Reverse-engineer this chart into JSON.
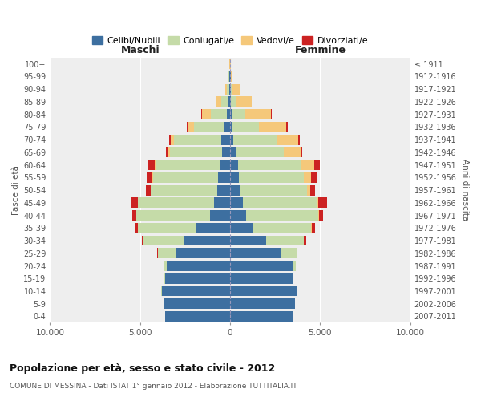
{
  "age_groups": [
    "0-4",
    "5-9",
    "10-14",
    "15-19",
    "20-24",
    "25-29",
    "30-34",
    "35-39",
    "40-44",
    "45-49",
    "50-54",
    "55-59",
    "60-64",
    "65-69",
    "70-74",
    "75-79",
    "80-84",
    "85-89",
    "90-94",
    "95-99",
    "100+"
  ],
  "birth_years": [
    "2007-2011",
    "2002-2006",
    "1997-2001",
    "1992-1996",
    "1987-1991",
    "1982-1986",
    "1977-1981",
    "1972-1976",
    "1967-1971",
    "1962-1966",
    "1957-1961",
    "1952-1956",
    "1947-1951",
    "1942-1946",
    "1937-1941",
    "1932-1936",
    "1927-1931",
    "1922-1926",
    "1917-1921",
    "1912-1916",
    "≤ 1911"
  ],
  "male": {
    "celibi": [
      3600,
      3700,
      3800,
      3600,
      3500,
      3000,
      2600,
      1900,
      1100,
      900,
      700,
      680,
      600,
      450,
      500,
      320,
      180,
      80,
      60,
      30,
      10
    ],
    "coniugati": [
      2,
      5,
      10,
      50,
      200,
      1000,
      2200,
      3200,
      4100,
      4200,
      3700,
      3600,
      3500,
      2900,
      2600,
      1700,
      900,
      400,
      120,
      50,
      10
    ],
    "vedovi": [
      0,
      0,
      0,
      0,
      1,
      2,
      5,
      10,
      15,
      20,
      30,
      50,
      80,
      100,
      200,
      300,
      500,
      300,
      80,
      30,
      5
    ],
    "divorziati": [
      0,
      0,
      0,
      2,
      5,
      30,
      100,
      200,
      200,
      380,
      250,
      280,
      380,
      120,
      100,
      80,
      15,
      10,
      5,
      2,
      0
    ]
  },
  "female": {
    "nubili": [
      3500,
      3600,
      3700,
      3500,
      3500,
      2800,
      2000,
      1300,
      900,
      700,
      550,
      500,
      450,
      300,
      180,
      120,
      80,
      60,
      40,
      20,
      10
    ],
    "coniugate": [
      1,
      2,
      5,
      30,
      150,
      900,
      2100,
      3200,
      4000,
      4100,
      3700,
      3600,
      3500,
      2700,
      2400,
      1500,
      700,
      250,
      80,
      30,
      5
    ],
    "vedove": [
      0,
      0,
      0,
      0,
      2,
      5,
      10,
      20,
      50,
      100,
      200,
      400,
      700,
      900,
      1200,
      1500,
      1500,
      900,
      400,
      60,
      5
    ],
    "divorziate": [
      0,
      0,
      0,
      2,
      5,
      30,
      100,
      200,
      200,
      480,
      280,
      300,
      350,
      120,
      100,
      80,
      15,
      10,
      5,
      2,
      0
    ]
  },
  "colors": {
    "celibi": "#3d6fa0",
    "coniugati": "#c5dba8",
    "vedovi": "#f5c87a",
    "divorziati": "#cc2222"
  },
  "title": "Popolazione per età, sesso e stato civile - 2012",
  "subtitle": "COMUNE DI MESSINA - Dati ISTAT 1° gennaio 2012 - Elaborazione TUTTITALIA.IT",
  "xlabel_left": "Maschi",
  "xlabel_right": "Femmine",
  "ylabel_left": "Fasce di età",
  "ylabel_right": "Anni di nascita",
  "xlim": 10000,
  "bg_color": "#ffffff",
  "plot_bg": "#eeeeee",
  "grid_color": "#ffffff"
}
